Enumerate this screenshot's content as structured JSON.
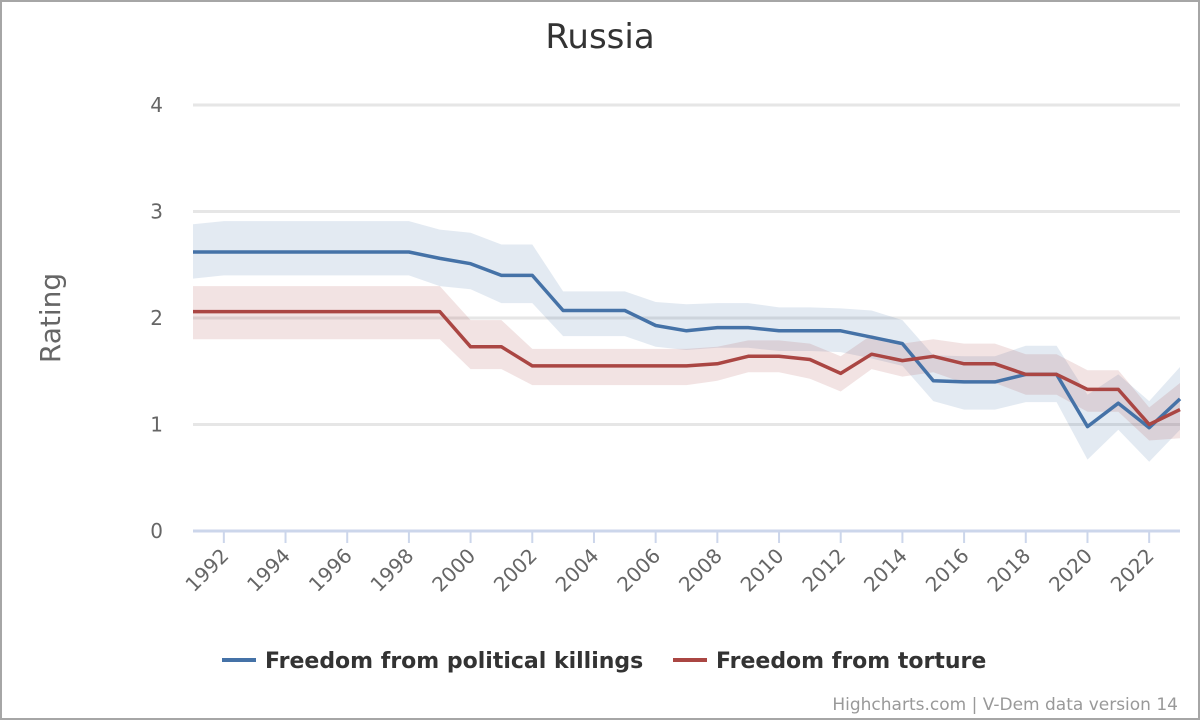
{
  "chart_data": {
    "type": "line",
    "title": "Russia",
    "xlabel": "",
    "ylabel": "Rating",
    "xlim": [
      1991,
      2023
    ],
    "ylim": [
      0,
      4
    ],
    "y_ticks": [
      0,
      1,
      2,
      3,
      4
    ],
    "x_ticks": [
      "1992",
      "1994",
      "1996",
      "1998",
      "2000",
      "2002",
      "2004",
      "2006",
      "2008",
      "2010",
      "2012",
      "2014",
      "2016",
      "2018",
      "2020",
      "2022"
    ],
    "grid": true,
    "legend_position": "bottom",
    "x": [
      1991,
      1992,
      1993,
      1994,
      1995,
      1996,
      1997,
      1998,
      1999,
      2000,
      2001,
      2002,
      2003,
      2004,
      2005,
      2006,
      2007,
      2008,
      2009,
      2010,
      2011,
      2012,
      2013,
      2014,
      2015,
      2016,
      2017,
      2018,
      2019,
      2020,
      2021,
      2022,
      2023
    ],
    "series": [
      {
        "name": "Freedom from political killings",
        "color": "#4572a7",
        "values": [
          2.62,
          2.62,
          2.62,
          2.62,
          2.62,
          2.62,
          2.62,
          2.62,
          2.56,
          2.51,
          2.4,
          2.4,
          2.07,
          2.07,
          2.07,
          1.93,
          1.88,
          1.91,
          1.91,
          1.88,
          1.88,
          1.88,
          1.82,
          1.76,
          1.41,
          1.4,
          1.4,
          1.47,
          1.47,
          0.98,
          1.2,
          0.97,
          1.24
        ],
        "upper": [
          2.88,
          2.91,
          2.91,
          2.91,
          2.91,
          2.91,
          2.91,
          2.91,
          2.83,
          2.8,
          2.69,
          2.69,
          2.25,
          2.25,
          2.25,
          2.15,
          2.13,
          2.14,
          2.14,
          2.1,
          2.1,
          2.09,
          2.07,
          1.98,
          1.65,
          1.64,
          1.64,
          1.74,
          1.74,
          1.28,
          1.47,
          1.22,
          1.54
        ],
        "lower": [
          2.37,
          2.4,
          2.4,
          2.4,
          2.4,
          2.4,
          2.4,
          2.4,
          2.3,
          2.27,
          2.14,
          2.14,
          1.83,
          1.83,
          1.83,
          1.73,
          1.7,
          1.72,
          1.72,
          1.69,
          1.69,
          1.68,
          1.62,
          1.55,
          1.22,
          1.14,
          1.14,
          1.21,
          1.21,
          0.67,
          0.95,
          0.65,
          0.95
        ]
      },
      {
        "name": "Freedom from torture",
        "color": "#aa4643",
        "values": [
          2.06,
          2.06,
          2.06,
          2.06,
          2.06,
          2.06,
          2.06,
          2.06,
          2.06,
          1.73,
          1.73,
          1.55,
          1.55,
          1.55,
          1.55,
          1.55,
          1.55,
          1.57,
          1.64,
          1.64,
          1.61,
          1.48,
          1.66,
          1.6,
          1.64,
          1.57,
          1.57,
          1.47,
          1.47,
          1.33,
          1.33,
          1.0,
          1.14
        ],
        "upper": [
          2.3,
          2.3,
          2.3,
          2.3,
          2.3,
          2.3,
          2.3,
          2.3,
          2.3,
          1.98,
          1.98,
          1.71,
          1.71,
          1.71,
          1.71,
          1.71,
          1.71,
          1.73,
          1.79,
          1.79,
          1.76,
          1.64,
          1.84,
          1.76,
          1.8,
          1.76,
          1.76,
          1.66,
          1.66,
          1.51,
          1.51,
          1.16,
          1.39
        ],
        "lower": [
          1.8,
          1.8,
          1.8,
          1.8,
          1.8,
          1.8,
          1.8,
          1.8,
          1.8,
          1.52,
          1.52,
          1.37,
          1.37,
          1.37,
          1.37,
          1.37,
          1.37,
          1.41,
          1.49,
          1.49,
          1.43,
          1.31,
          1.52,
          1.45,
          1.49,
          1.39,
          1.39,
          1.28,
          1.28,
          1.12,
          1.12,
          0.85,
          0.87
        ]
      }
    ],
    "credits": "Highcharts.com | V-Dem data version 14"
  }
}
